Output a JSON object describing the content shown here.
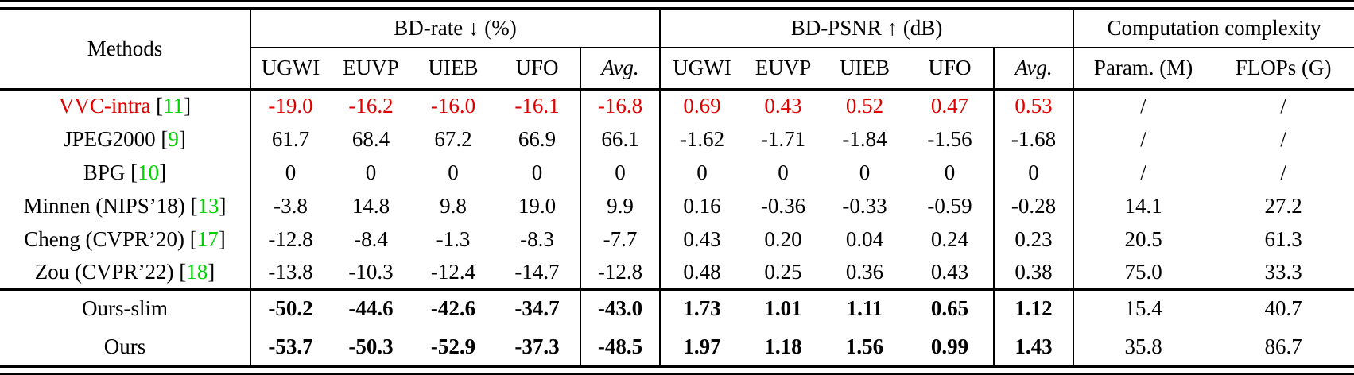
{
  "colors": {
    "value_red": "#e00000",
    "citation_green": "#00d400",
    "text": "#000000"
  },
  "table": {
    "header": {
      "methods": "Methods",
      "group_bdrate": "BD-rate ↓ (%)",
      "group_bdpsnr": "BD-PSNR ↑ (dB)",
      "group_complexity": "Computation complexity",
      "sub_bdrate": [
        "UGWI",
        "EUVP",
        "UIEB",
        "UFO",
        "Avg."
      ],
      "sub_bdpsnr": [
        "UGWI",
        "EUVP",
        "UIEB",
        "UFO",
        "Avg."
      ],
      "sub_complexity": [
        "Param. (M)",
        "FLOPs (G)"
      ]
    },
    "rows": [
      {
        "name": "VVC-intra",
        "ref_l": " [",
        "ref": "11",
        "ref_r": "]",
        "bdrate": [
          "-19.0",
          "-16.2",
          "-16.0",
          "-16.1",
          "-16.8"
        ],
        "bdpsnr": [
          "0.69",
          "0.43",
          "0.52",
          "0.47",
          "0.53"
        ],
        "complexity": [
          "/",
          "/"
        ]
      },
      {
        "name": "JPEG2000",
        "ref_l": " [",
        "ref": "9",
        "ref_r": "]",
        "bdrate": [
          "61.7",
          "68.4",
          "67.2",
          "66.9",
          "66.1"
        ],
        "bdpsnr": [
          "-1.62",
          "-1.71",
          "-1.84",
          "-1.56",
          "-1.68"
        ],
        "complexity": [
          "/",
          "/"
        ]
      },
      {
        "name": "BPG",
        "ref_l": " [",
        "ref": "10",
        "ref_r": "]",
        "bdrate": [
          "0",
          "0",
          "0",
          "0",
          "0"
        ],
        "bdpsnr": [
          "0",
          "0",
          "0",
          "0",
          "0"
        ],
        "complexity": [
          "/",
          "/"
        ]
      },
      {
        "name": "Minnen (NIPS’18)",
        "ref_l": " [",
        "ref": "13",
        "ref_r": "]",
        "bdrate": [
          "-3.8",
          "14.8",
          "9.8",
          "19.0",
          "9.9"
        ],
        "bdpsnr": [
          "0.16",
          "-0.36",
          "-0.33",
          "-0.59",
          "-0.28"
        ],
        "complexity": [
          "14.1",
          "27.2"
        ]
      },
      {
        "name": "Cheng (CVPR’20)",
        "ref_l": " [",
        "ref": "17",
        "ref_r": "]",
        "bdrate": [
          "-12.8",
          "-8.4",
          "-1.3",
          "-8.3",
          "-7.7"
        ],
        "bdpsnr": [
          "0.43",
          "0.20",
          "0.04",
          "0.24",
          "0.23"
        ],
        "complexity": [
          "20.5",
          "61.3"
        ]
      },
      {
        "name": "Zou (CVPR’22)",
        "ref_l": " [",
        "ref": "18",
        "ref_r": "]",
        "bdrate": [
          "-13.8",
          "-10.3",
          "-12.4",
          "-14.7",
          "-12.8"
        ],
        "bdpsnr": [
          "0.48",
          "0.25",
          "0.36",
          "0.43",
          "0.38"
        ],
        "complexity": [
          "75.0",
          "33.3"
        ]
      },
      {
        "name": "Ours-slim",
        "bdrate": [
          "-50.2",
          "-44.6",
          "-42.6",
          "-34.7",
          "-43.0"
        ],
        "bdpsnr": [
          "1.73",
          "1.01",
          "1.11",
          "0.65",
          "1.12"
        ],
        "complexity": [
          "15.4",
          "40.7"
        ]
      },
      {
        "name": "Ours",
        "bdrate": [
          "-53.7",
          "-50.3",
          "-52.9",
          "-37.3",
          "-48.5"
        ],
        "bdpsnr": [
          "1.97",
          "1.18",
          "1.56",
          "0.99",
          "1.43"
        ],
        "complexity": [
          "35.8",
          "86.7"
        ]
      }
    ]
  }
}
